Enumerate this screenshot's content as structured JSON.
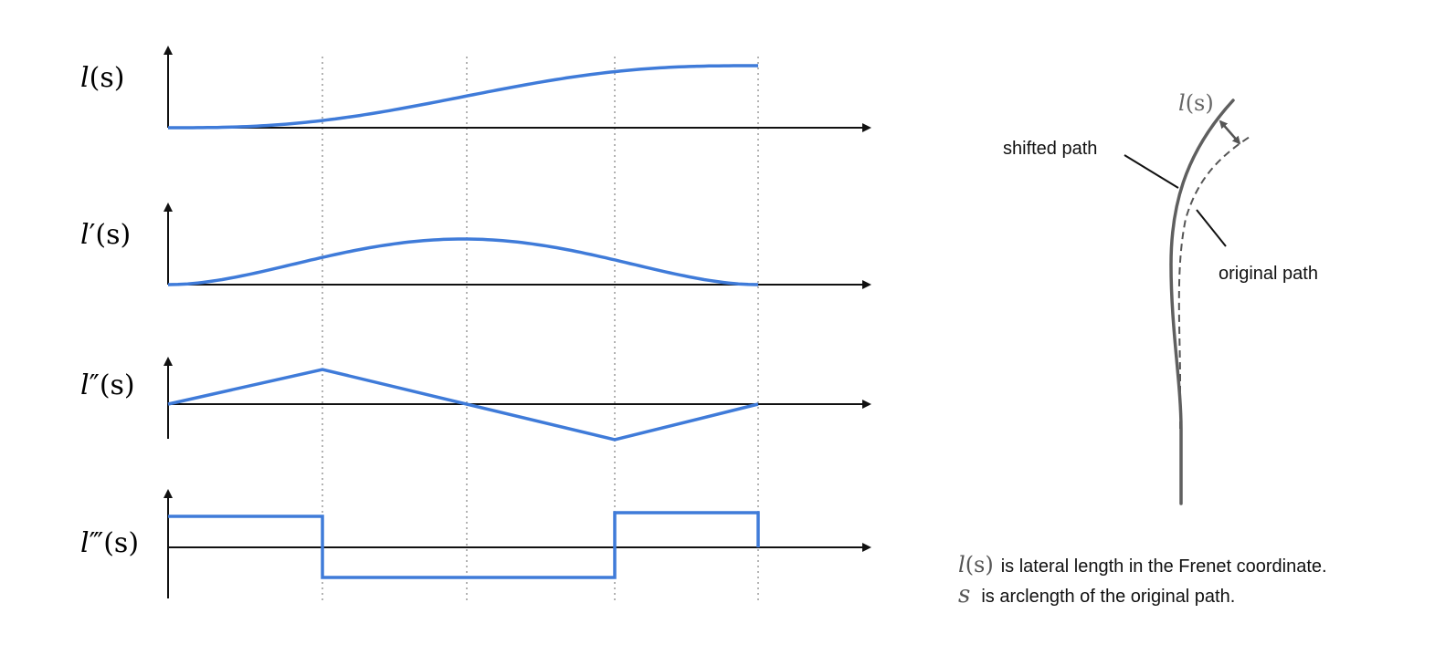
{
  "colors": {
    "curve": "#3f7bd9",
    "axis": "#111111",
    "guide": "#8a8a8a",
    "path": "#5f5f5f",
    "arrow": "#555555"
  },
  "plots": [
    {
      "id": "l",
      "func": "l",
      "primes": "",
      "shape": "smoothstep-up"
    },
    {
      "id": "l1",
      "func": "l",
      "primes": "′",
      "shape": "bell"
    },
    {
      "id": "l2",
      "func": "l",
      "primes": "″",
      "shape": "triangle"
    },
    {
      "id": "l3",
      "func": "l",
      "primes": "‴",
      "shape": "square"
    }
  ],
  "arg": "(s)",
  "right_diagram": {
    "shift_symbol": "l",
    "shift_arg": "(s)",
    "shifted_label": "shifted path",
    "original_label": "original path"
  },
  "notes": {
    "line1_symbol": "l",
    "line1_arg": "(s)",
    "line1_text": "is lateral length in the Frenet coordinate.",
    "line2_symbol": "s",
    "line2_text": "is arclength of the original path."
  }
}
